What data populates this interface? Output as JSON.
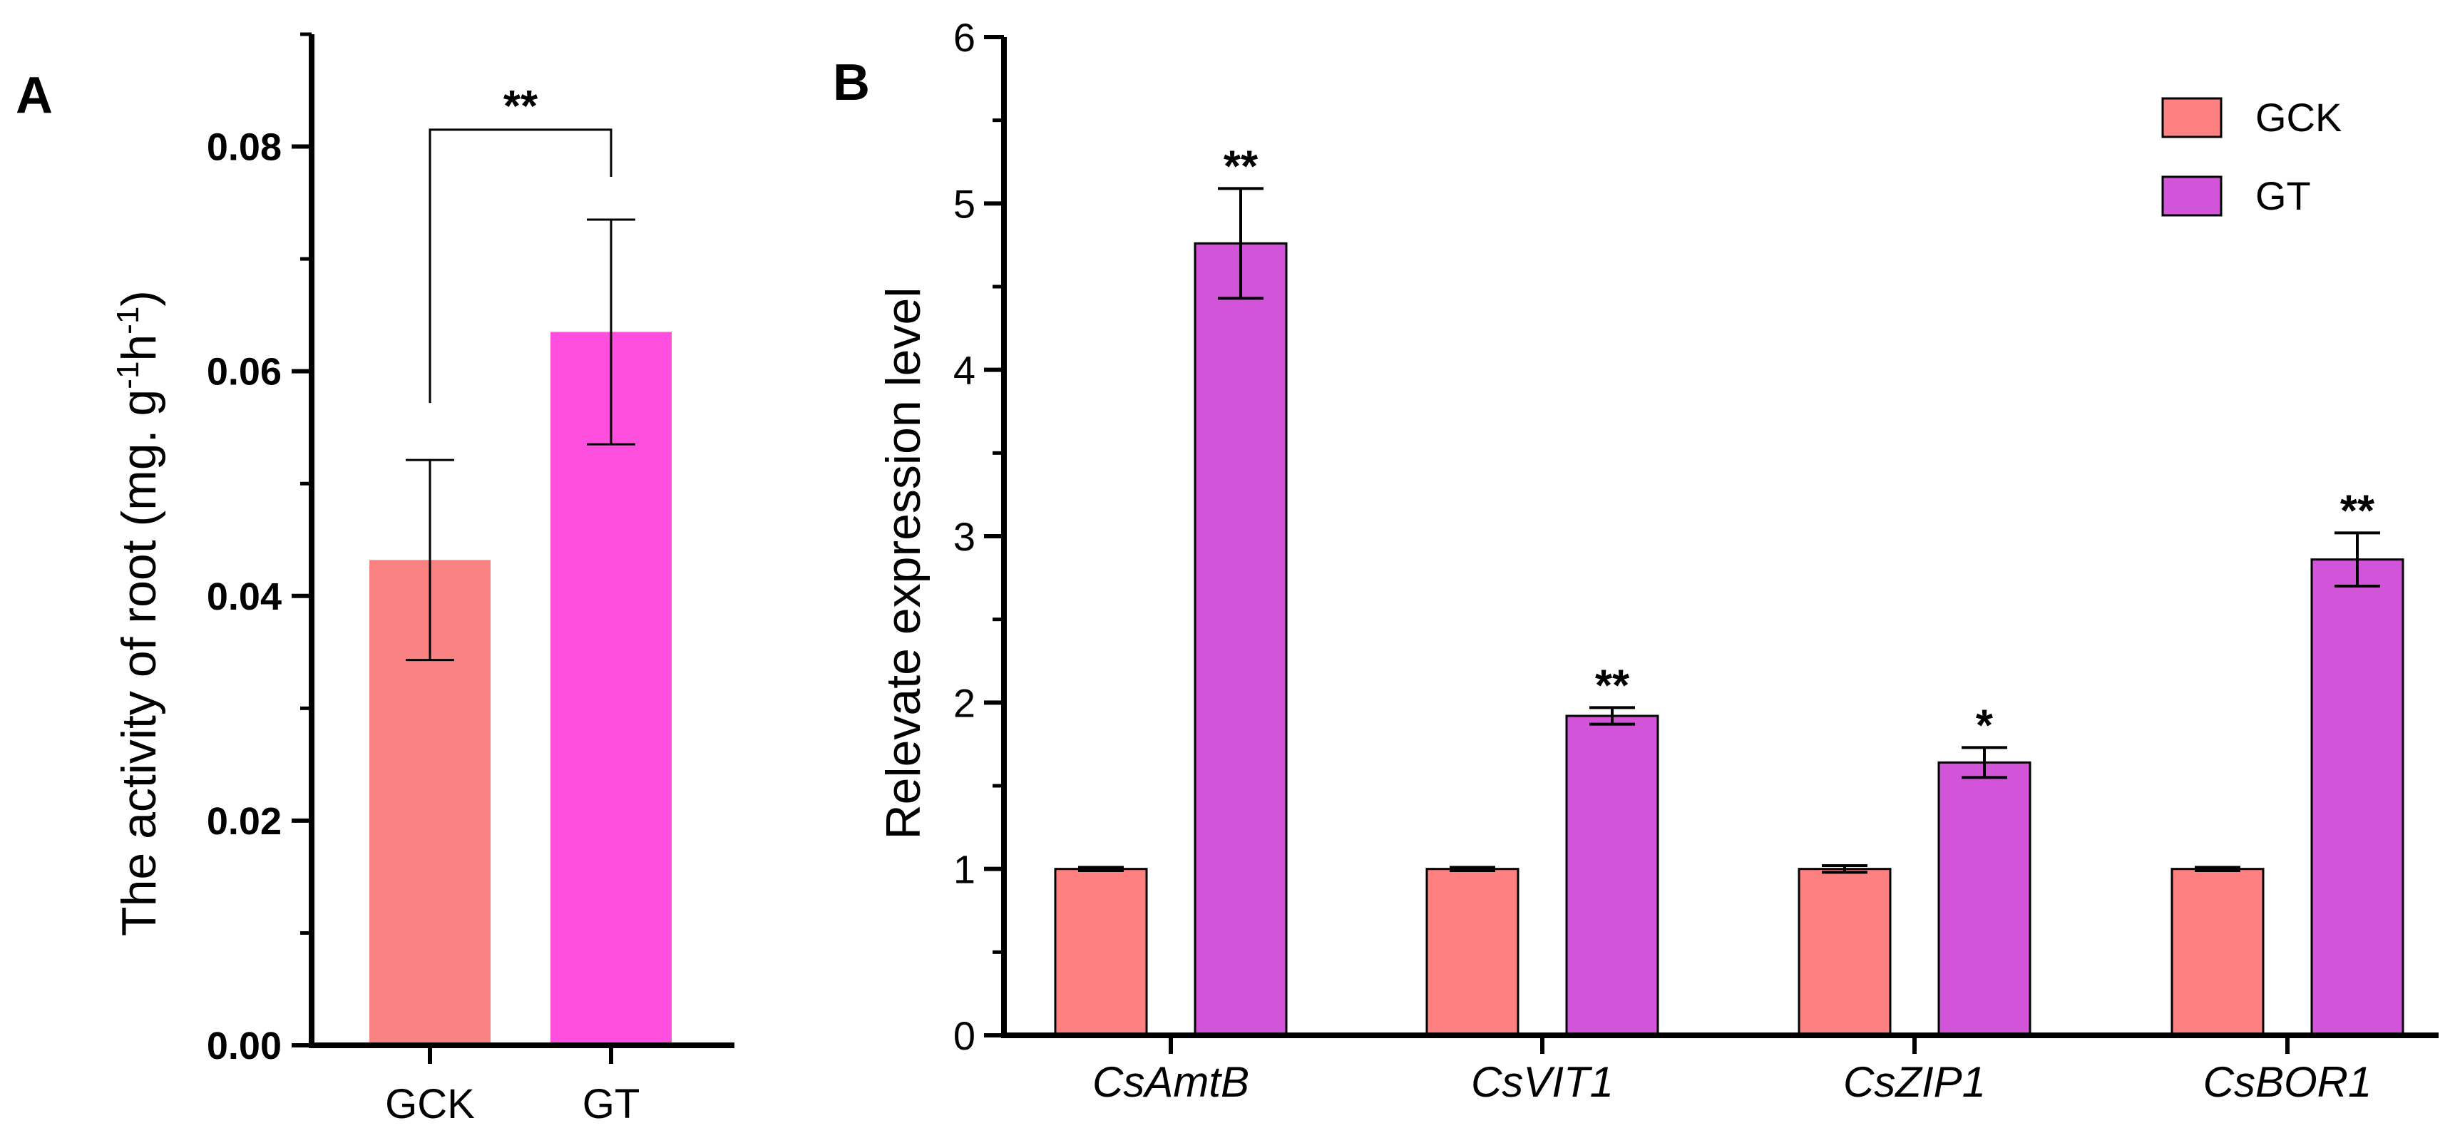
{
  "chart_data": [
    {
      "panel_label": "A",
      "type": "bar",
      "title": "",
      "ylabel_main": "The activity of root  (mg. g",
      "ylabel_sup1": "-1",
      "ylabel_mid": "h",
      "ylabel_sup2": "-1",
      "ylabel_end": ")",
      "xlabel": "",
      "categories": [
        "GCK",
        "GT"
      ],
      "values": [
        0.0432,
        0.0635
      ],
      "errors": [
        0.0089,
        0.01
      ],
      "colors": [
        "#fa8282",
        "#ff4fde"
      ],
      "ylim": [
        0,
        0.09
      ],
      "yticks": [
        0.0,
        0.02,
        0.04,
        0.06,
        0.08
      ],
      "ytick_labels": [
        "0.00",
        "0.02",
        "0.04",
        "0.06",
        "0.08"
      ],
      "significance": "**",
      "grid": false
    },
    {
      "panel_label": "B",
      "type": "bar",
      "title": "",
      "ylabel": "Relevate expression level",
      "xlabel": "",
      "categories": [
        "CsAmtB",
        "CsVIT1",
        "CsZIP1",
        "CsBOR1"
      ],
      "series": [
        {
          "name": "GCK",
          "color": "#ff8080",
          "values": [
            1.0,
            1.0,
            1.0,
            1.0
          ],
          "errors": [
            0.01,
            0.01,
            0.02,
            0.01
          ],
          "stars": [
            "",
            "",
            "",
            ""
          ]
        },
        {
          "name": "GT",
          "color": "#d154d9",
          "values": [
            4.76,
            1.92,
            1.64,
            2.86
          ],
          "errors": [
            0.33,
            0.05,
            0.09,
            0.16
          ],
          "stars": [
            "**",
            "**",
            "*",
            "**"
          ]
        }
      ],
      "ylim": [
        0,
        6
      ],
      "yticks": [
        0,
        1,
        2,
        3,
        4,
        5,
        6
      ],
      "legend": "top-right",
      "grid": false
    }
  ]
}
